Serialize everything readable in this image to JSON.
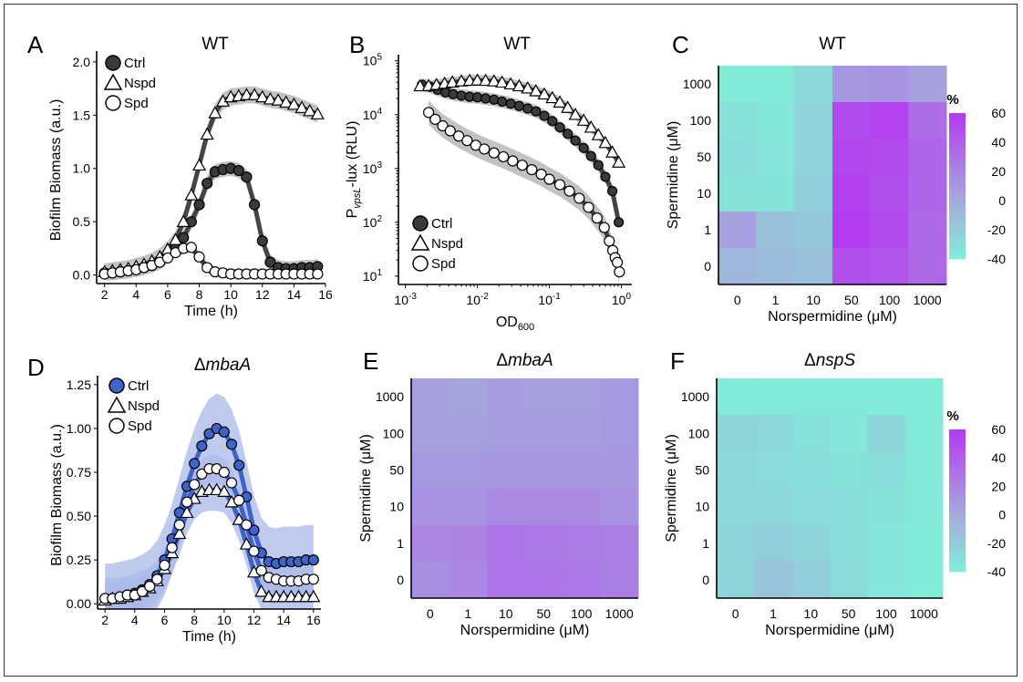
{
  "figure": {
    "panels": [
      {
        "letter": "A",
        "title": "WT",
        "title_italic": false,
        "xlabel": "Time (h)",
        "ylabel": "Biofilm Biomass (a.u.)"
      },
      {
        "letter": "B",
        "title": "WT",
        "title_italic": false,
        "xlabel_main": "OD",
        "xlabel_sub": "600",
        "ylabel_pre": "P",
        "ylabel_sub": "vpsL",
        "ylabel_post": "-lux (RLU)"
      },
      {
        "letter": "C",
        "title": "WT",
        "title_italic": false,
        "xlabel": "Norspermidine (μM)",
        "ylabel": "Spermidine (μM)"
      },
      {
        "letter": "D",
        "title_prefix": "Δ",
        "title": "mbaA",
        "title_italic": true,
        "xlabel": "Time (h)",
        "ylabel": "Biofilm Biomass (a.u.)"
      },
      {
        "letter": "E",
        "title_prefix": "Δ",
        "title": "mbaA",
        "title_italic": true,
        "xlabel": "Norspermidine (μM)",
        "ylabel": "Spermidine (μM)"
      },
      {
        "letter": "F",
        "title_prefix": "Δ",
        "title": "nspS",
        "title_italic": true,
        "xlabel": "Norspermidine (μM)",
        "ylabel": "Spermidine (μM)"
      }
    ],
    "legend_labels": [
      "Ctrl",
      "Nspd",
      "Spd"
    ],
    "colorbar": {
      "title": "%",
      "ticks": [
        60,
        40,
        20,
        0,
        -20,
        -40
      ]
    },
    "colors": {
      "ctrl_A": "#3a3a3a",
      "ctrl_D": "#3f63c9",
      "band_A": "#c2c2c2",
      "band_D": "#a9b9e8",
      "heat_low": "#7ff0d8",
      "heat_mid": "#a4acdc",
      "heat_high": "#b33cf0"
    }
  },
  "chart_data": [
    {
      "panel": "A",
      "type": "line",
      "xlim": [
        1.5,
        16
      ],
      "ylim": [
        -0.08,
        2.05
      ],
      "xticks": [
        2,
        4,
        6,
        8,
        10,
        12,
        14,
        16
      ],
      "yticks": [
        0.0,
        0.5,
        1.0,
        1.5,
        2.0
      ],
      "ytick_labels": [
        "0.0",
        "0.5",
        "1.0",
        "1.5",
        "2.0"
      ],
      "series": [
        {
          "name": "Ctrl",
          "x": [
            2,
            2.5,
            3,
            3.5,
            4,
            4.5,
            5,
            5.5,
            6,
            6.5,
            7,
            7.5,
            8,
            8.5,
            9,
            9.5,
            10,
            10.5,
            11,
            11.5,
            12,
            12.5,
            13,
            13.5,
            14,
            14.5,
            15,
            15.5
          ],
          "y": [
            0.02,
            0.02,
            0.03,
            0.04,
            0.05,
            0.07,
            0.09,
            0.12,
            0.18,
            0.25,
            0.35,
            0.5,
            0.66,
            0.86,
            0.97,
            0.99,
            1.0,
            0.98,
            0.92,
            0.66,
            0.32,
            0.12,
            0.07,
            0.06,
            0.06,
            0.07,
            0.07,
            0.08
          ]
        },
        {
          "name": "Nspd",
          "x": [
            2,
            2.5,
            3,
            3.5,
            4,
            4.5,
            5,
            5.5,
            6,
            6.5,
            7,
            7.5,
            8,
            8.5,
            9,
            9.5,
            10,
            10.5,
            11,
            11.5,
            12,
            12.5,
            13,
            13.5,
            14,
            14.5,
            15,
            15.5
          ],
          "y": [
            0.03,
            0.04,
            0.05,
            0.06,
            0.08,
            0.1,
            0.13,
            0.17,
            0.24,
            0.33,
            0.5,
            0.75,
            1.03,
            1.32,
            1.52,
            1.63,
            1.67,
            1.68,
            1.69,
            1.69,
            1.67,
            1.65,
            1.64,
            1.62,
            1.6,
            1.57,
            1.54,
            1.51
          ]
        },
        {
          "name": "Spd",
          "x": [
            2,
            2.5,
            3,
            3.5,
            4,
            4.5,
            5,
            5.5,
            6,
            6.5,
            7,
            7.5,
            8,
            8.5,
            9,
            9.5,
            10,
            10.5,
            11,
            11.5,
            12,
            12.5,
            13,
            13.5,
            14,
            14.5,
            15,
            15.5
          ],
          "y": [
            0.01,
            0.02,
            0.03,
            0.04,
            0.05,
            0.07,
            0.09,
            0.12,
            0.16,
            0.21,
            0.25,
            0.26,
            0.17,
            0.07,
            0.03,
            0.02,
            0.01,
            0.01,
            0.01,
            0.01,
            0.01,
            0.01,
            0.01,
            0.01,
            0.01,
            0.01,
            0.01,
            0.01
          ]
        }
      ]
    },
    {
      "panel": "B",
      "type": "scatter",
      "xscale": "log",
      "yscale": "log",
      "xlim": [
        0.0008,
        1.4
      ],
      "ylim": [
        7,
        130000
      ],
      "xticks": [
        0.001,
        0.01,
        0.1,
        1
      ],
      "xtick_labels": [
        {
          "base": "10",
          "exp": "-3"
        },
        {
          "base": "10",
          "exp": "-2"
        },
        {
          "base": "10",
          "exp": "-1"
        },
        {
          "base": "10",
          "exp": "0"
        }
      ],
      "yticks": [
        10,
        100,
        1000,
        10000,
        100000
      ],
      "ytick_labels": [
        {
          "base": "10",
          "exp": "1"
        },
        {
          "base": "10",
          "exp": "2"
        },
        {
          "base": "10",
          "exp": "3"
        },
        {
          "base": "10",
          "exp": "4"
        },
        {
          "base": "10",
          "exp": "5"
        }
      ],
      "series": [
        {
          "name": "Ctrl",
          "x": [
            0.0017,
            0.0022,
            0.0028,
            0.0036,
            0.0046,
            0.006,
            0.0078,
            0.01,
            0.013,
            0.017,
            0.022,
            0.029,
            0.038,
            0.05,
            0.065,
            0.085,
            0.11,
            0.14,
            0.18,
            0.23,
            0.3,
            0.38,
            0.48,
            0.6,
            0.75,
            0.92
          ],
          "y": [
            36000,
            33000,
            29000,
            26000,
            24000,
            22500,
            21500,
            21000,
            20000,
            19000,
            17500,
            16000,
            14500,
            13000,
            11500,
            9500,
            7600,
            5800,
            4400,
            3300,
            2400,
            1700,
            1150,
            700,
            380,
            100
          ]
        },
        {
          "name": "Nspd",
          "x": [
            0.0016,
            0.0021,
            0.0027,
            0.0035,
            0.0045,
            0.006,
            0.0078,
            0.01,
            0.013,
            0.017,
            0.022,
            0.029,
            0.038,
            0.05,
            0.065,
            0.085,
            0.11,
            0.14,
            0.18,
            0.23,
            0.3,
            0.38,
            0.48,
            0.6,
            0.75,
            0.92
          ],
          "y": [
            34000,
            34500,
            36000,
            38000,
            40000,
            42000,
            43000,
            43500,
            43000,
            42000,
            40000,
            37000,
            34000,
            31000,
            27500,
            24000,
            20500,
            17000,
            13500,
            10000,
            7800,
            5800,
            4200,
            3000,
            2000,
            1300
          ]
        },
        {
          "name": "Spd",
          "x": [
            0.0021,
            0.0026,
            0.0033,
            0.0042,
            0.0055,
            0.0072,
            0.0095,
            0.0125,
            0.017,
            0.023,
            0.031,
            0.042,
            0.057,
            0.077,
            0.1,
            0.14,
            0.19,
            0.26,
            0.35,
            0.46,
            0.58,
            0.68,
            0.76,
            0.82,
            0.88,
            0.94
          ],
          "y": [
            11000,
            8200,
            6200,
            5000,
            4000,
            3300,
            2700,
            2300,
            1950,
            1650,
            1380,
            1150,
            950,
            780,
            630,
            500,
            380,
            280,
            190,
            120,
            80,
            45,
            30,
            22,
            18,
            12
          ]
        }
      ]
    },
    {
      "panel": "C",
      "type": "heatmap",
      "x_categories": [
        "0",
        "1",
        "10",
        "50",
        "100",
        "1000"
      ],
      "y_categories": [
        "1000",
        "100",
        "50",
        "10",
        "1",
        "0"
      ],
      "values": [
        [
          -38,
          -36,
          -26,
          12,
          14,
          6
        ],
        [
          -31,
          -35,
          -22,
          52,
          56,
          34
        ],
        [
          -30,
          -34,
          -22,
          54,
          52,
          38
        ],
        [
          -32,
          -33,
          -20,
          58,
          50,
          38
        ],
        [
          6,
          -12,
          -16,
          60,
          52,
          36
        ],
        [
          -6,
          -10,
          -12,
          50,
          46,
          36
        ]
      ]
    },
    {
      "panel": "D",
      "type": "line",
      "xlim": [
        1.5,
        16.5
      ],
      "ylim": [
        -0.03,
        1.27
      ],
      "xticks": [
        2,
        4,
        6,
        8,
        10,
        12,
        14,
        16
      ],
      "yticks": [
        0.0,
        0.25,
        0.5,
        0.75,
        1.0,
        1.25
      ],
      "ytick_labels": [
        "0.00",
        "0.25",
        "0.50",
        "0.75",
        "1.00",
        "1.25"
      ],
      "series": [
        {
          "name": "Ctrl",
          "x": [
            2,
            2.5,
            3,
            3.5,
            4,
            4.5,
            5,
            5.5,
            6,
            6.5,
            7,
            7.5,
            8,
            8.5,
            9,
            9.5,
            10,
            10.5,
            11,
            11.5,
            12,
            12.5,
            13,
            13.5,
            14,
            14.5,
            15,
            15.5,
            16
          ],
          "y": [
            0.03,
            0.03,
            0.04,
            0.05,
            0.06,
            0.08,
            0.11,
            0.16,
            0.25,
            0.37,
            0.52,
            0.67,
            0.8,
            0.9,
            0.97,
            1.0,
            0.98,
            0.91,
            0.79,
            0.61,
            0.42,
            0.29,
            0.24,
            0.23,
            0.24,
            0.24,
            0.24,
            0.25,
            0.25
          ]
        },
        {
          "name": "Nspd",
          "x": [
            2,
            2.5,
            3,
            3.5,
            4,
            4.5,
            5,
            5.5,
            6,
            6.5,
            7,
            7.5,
            8,
            8.5,
            9,
            9.5,
            10,
            10.5,
            11,
            11.5,
            12,
            12.5,
            13,
            13.5,
            14,
            14.5,
            15,
            15.5,
            16
          ],
          "y": [
            0.02,
            0.03,
            0.03,
            0.04,
            0.05,
            0.07,
            0.09,
            0.13,
            0.2,
            0.29,
            0.4,
            0.52,
            0.6,
            0.64,
            0.65,
            0.65,
            0.64,
            0.58,
            0.48,
            0.34,
            0.18,
            0.07,
            0.04,
            0.04,
            0.04,
            0.04,
            0.04,
            0.04,
            0.04
          ]
        },
        {
          "name": "Spd",
          "x": [
            2,
            2.5,
            3,
            3.5,
            4,
            4.5,
            5,
            5.5,
            6,
            6.5,
            7,
            7.5,
            8,
            8.5,
            9,
            9.5,
            10,
            10.5,
            11,
            11.5,
            12,
            12.5,
            13,
            13.5,
            14,
            14.5,
            15,
            15.5,
            16
          ],
          "y": [
            0.03,
            0.03,
            0.04,
            0.05,
            0.05,
            0.07,
            0.1,
            0.14,
            0.22,
            0.32,
            0.45,
            0.58,
            0.68,
            0.74,
            0.77,
            0.77,
            0.75,
            0.69,
            0.59,
            0.45,
            0.3,
            0.19,
            0.15,
            0.14,
            0.13,
            0.13,
            0.13,
            0.14,
            0.14
          ]
        }
      ]
    },
    {
      "panel": "E",
      "type": "heatmap",
      "x_categories": [
        "0",
        "1",
        "10",
        "50",
        "100",
        "1000"
      ],
      "y_categories": [
        "1000",
        "100",
        "50",
        "10",
        "1",
        "0"
      ],
      "values": [
        [
          6,
          4,
          8,
          6,
          6,
          10
        ],
        [
          6,
          6,
          8,
          8,
          8,
          10
        ],
        [
          10,
          10,
          12,
          12,
          12,
          12
        ],
        [
          14,
          14,
          18,
          18,
          18,
          14
        ],
        [
          20,
          22,
          30,
          28,
          26,
          24
        ],
        [
          16,
          20,
          30,
          30,
          28,
          24
        ]
      ]
    },
    {
      "panel": "F",
      "type": "heatmap",
      "x_categories": [
        "0",
        "1",
        "10",
        "50",
        "100",
        "1000"
      ],
      "y_categories": [
        "1000",
        "100",
        "50",
        "10",
        "1",
        "0"
      ],
      "values": [
        [
          -38,
          -36,
          -36,
          -36,
          -38,
          -38
        ],
        [
          -24,
          -26,
          -32,
          -34,
          -24,
          -36
        ],
        [
          -26,
          -28,
          -30,
          -32,
          -30,
          -36
        ],
        [
          -26,
          -26,
          -28,
          -30,
          -32,
          -36
        ],
        [
          -24,
          -20,
          -24,
          -30,
          -34,
          -38
        ],
        [
          -24,
          -14,
          -20,
          -28,
          -34,
          -38
        ]
      ]
    }
  ]
}
